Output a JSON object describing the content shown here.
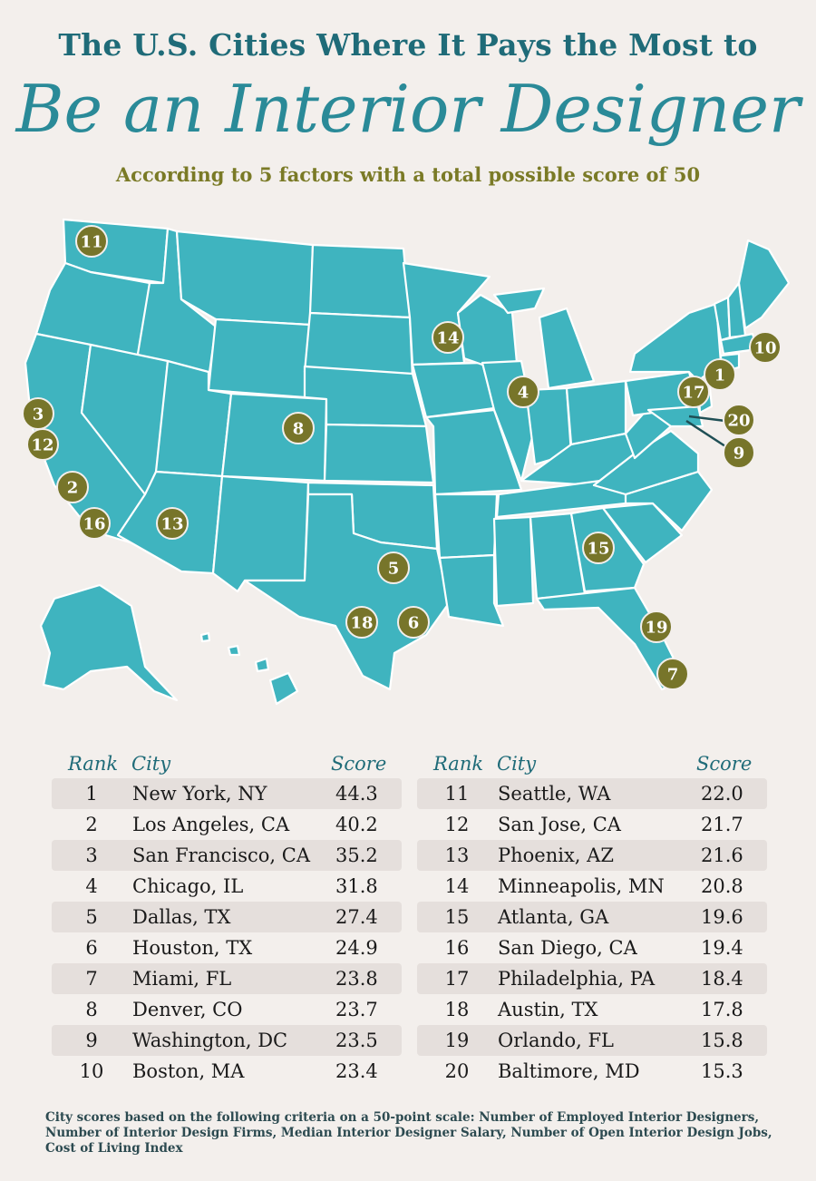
{
  "header": {
    "title_line1": "The U.S. Cities Where It Pays the Most to",
    "title_line2": "Be an Interior Designer",
    "subtitle": "According to 5 factors with a total possible score of 50"
  },
  "colors": {
    "map_fill": "#3fb4bf",
    "marker": "#77752a",
    "title": "#1f6b78",
    "subtitle": "#7a7a26",
    "row_shade": "#e5dfdc"
  },
  "map_markers": [
    {
      "label": "1"
    },
    {
      "label": "2"
    },
    {
      "label": "3"
    },
    {
      "label": "4"
    },
    {
      "label": "5"
    },
    {
      "label": "6"
    },
    {
      "label": "7"
    },
    {
      "label": "8"
    },
    {
      "label": "9"
    },
    {
      "label": "10"
    },
    {
      "label": "11"
    },
    {
      "label": "12"
    },
    {
      "label": "13"
    },
    {
      "label": "14"
    },
    {
      "label": "15"
    },
    {
      "label": "16"
    },
    {
      "label": "17"
    },
    {
      "label": "18"
    },
    {
      "label": "19"
    },
    {
      "label": "20"
    }
  ],
  "table": {
    "headers": {
      "rank": "Rank",
      "city": "City",
      "score": "Score"
    },
    "rows": [
      {
        "rank": "1",
        "city": "New York, NY",
        "score": "44.3"
      },
      {
        "rank": "2",
        "city": "Los Angeles, CA",
        "score": "40.2"
      },
      {
        "rank": "3",
        "city": "San Francisco, CA",
        "score": "35.2"
      },
      {
        "rank": "4",
        "city": "Chicago, IL",
        "score": "31.8"
      },
      {
        "rank": "5",
        "city": "Dallas, TX",
        "score": "27.4"
      },
      {
        "rank": "6",
        "city": "Houston, TX",
        "score": "24.9"
      },
      {
        "rank": "7",
        "city": "Miami, FL",
        "score": "23.8"
      },
      {
        "rank": "8",
        "city": "Denver, CO",
        "score": "23.7"
      },
      {
        "rank": "9",
        "city": "Washington, DC",
        "score": "23.5"
      },
      {
        "rank": "10",
        "city": "Boston, MA",
        "score": "23.4"
      },
      {
        "rank": "11",
        "city": "Seattle, WA",
        "score": "22.0"
      },
      {
        "rank": "12",
        "city": "San Jose, CA",
        "score": "21.7"
      },
      {
        "rank": "13",
        "city": "Phoenix, AZ",
        "score": "21.6"
      },
      {
        "rank": "14",
        "city": "Minneapolis, MN",
        "score": "20.8"
      },
      {
        "rank": "15",
        "city": "Atlanta, GA",
        "score": "19.6"
      },
      {
        "rank": "16",
        "city": "San Diego, CA",
        "score": "19.4"
      },
      {
        "rank": "17",
        "city": "Philadelphia, PA",
        "score": "18.4"
      },
      {
        "rank": "18",
        "city": "Austin, TX",
        "score": "17.8"
      },
      {
        "rank": "19",
        "city": "Orlando, FL",
        "score": "15.8"
      },
      {
        "rank": "20",
        "city": "Baltimore, MD",
        "score": "15.3"
      }
    ]
  },
  "footnote": "City scores based on the following criteria on a 50-point scale: Number of Employed Interior Designers, Number of Interior Design Firms, Median Interior Designer Salary, Number of Open Interior Design Jobs, Cost of Living Index"
}
